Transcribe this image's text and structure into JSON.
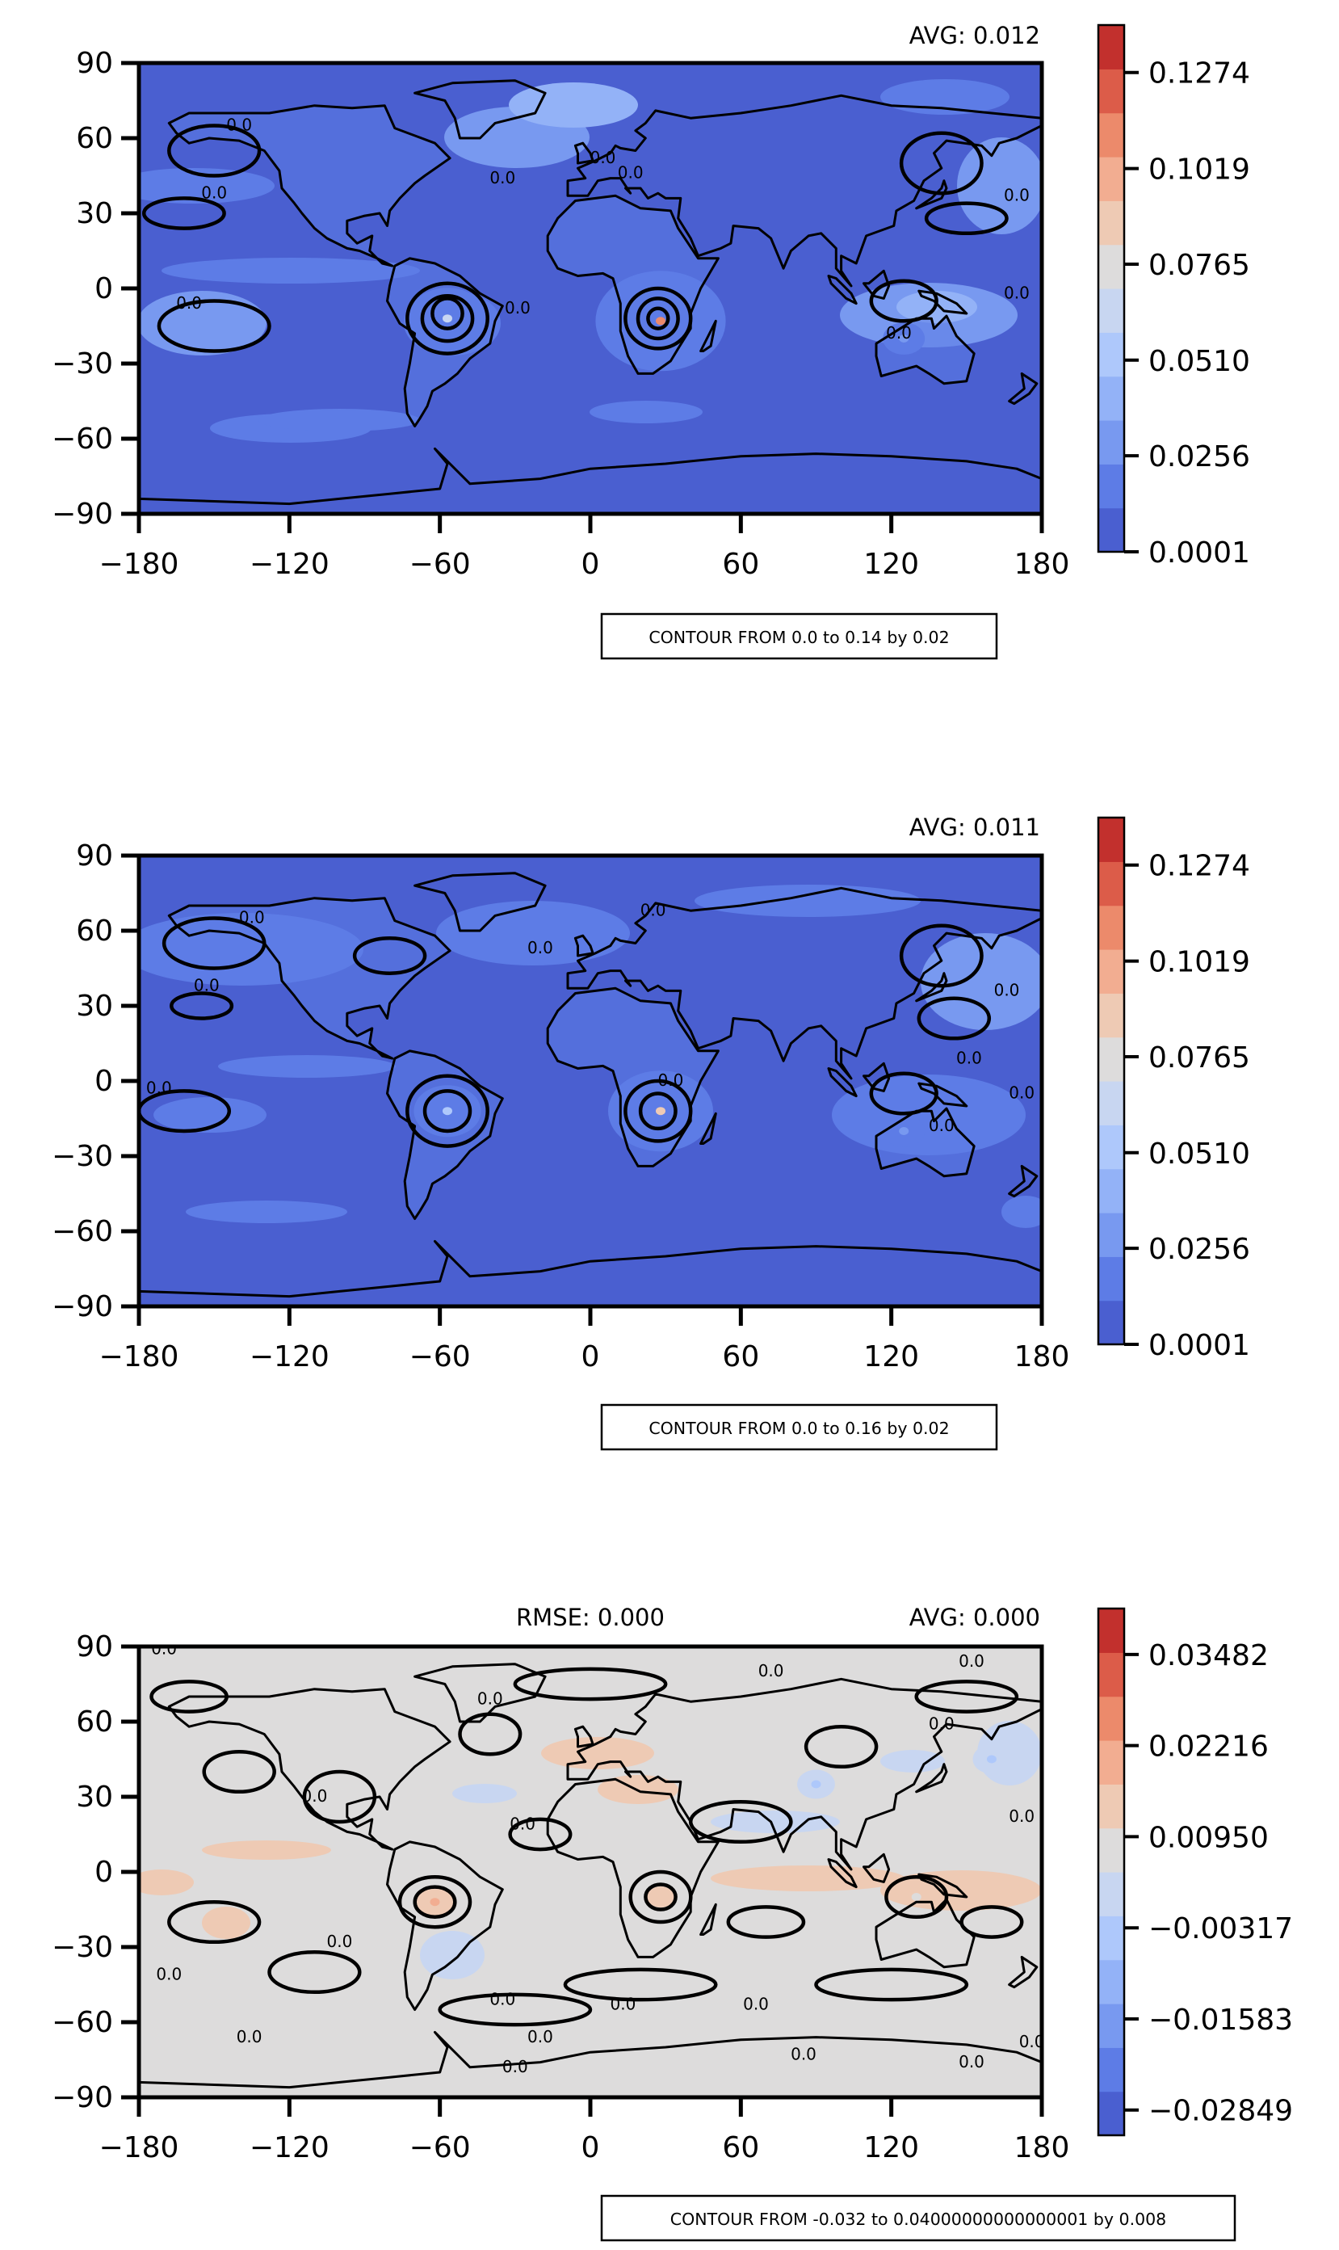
{
  "chart_data": [
    {
      "type": "heatmap",
      "subtype": "filled-contour-map",
      "xlim": [
        -180,
        180
      ],
      "ylim": [
        -90,
        90
      ],
      "xticks": [
        -180,
        -120,
        -60,
        0,
        60,
        120,
        180
      ],
      "yticks": [
        90,
        60,
        30,
        0,
        -30,
        -60,
        -90
      ],
      "xtick_labels": [
        "−180",
        "−120",
        "−60",
        "0",
        "60",
        "120",
        "180"
      ],
      "ytick_labels": [
        "90",
        "60",
        "30",
        "0",
        "−30",
        "−60",
        "−90"
      ],
      "avg_label": "AVG: 0.012",
      "colorbar": {
        "range": [
          0.0001,
          0.14
        ],
        "tick_values": [
          0.0001,
          0.0256,
          0.051,
          0.0765,
          0.1019,
          0.1274
        ],
        "tick_labels": [
          "0.0001",
          "0.0256",
          "0.0510",
          "0.0765",
          "0.1019",
          "0.1274"
        ],
        "colors": [
          "#4a5fd0",
          "#5d7ce6",
          "#7899f0",
          "#93b2f7",
          "#aec8fb",
          "#c8d6f1",
          "#dddcdc",
          "#eecab4",
          "#f2ad91",
          "#ec8a6b",
          "#dc5c49",
          "#c2302d"
        ]
      },
      "contour_note": "CONTOUR FROM 0.0 to 0.14 by 0.02",
      "contour_label": "0.0",
      "hotspots": [
        {
          "lon": 28,
          "lat": -13,
          "value": 0.11
        },
        {
          "lon": -57,
          "lat": -12,
          "value": 0.065
        },
        {
          "lon": 125,
          "lat": -20,
          "value": 0.03
        }
      ]
    },
    {
      "type": "heatmap",
      "subtype": "filled-contour-map",
      "xlim": [
        -180,
        180
      ],
      "ylim": [
        -90,
        90
      ],
      "xticks": [
        -180,
        -120,
        -60,
        0,
        60,
        120,
        180
      ],
      "yticks": [
        90,
        60,
        30,
        0,
        -30,
        -60,
        -90
      ],
      "xtick_labels": [
        "−180",
        "−120",
        "−60",
        "0",
        "60",
        "120",
        "180"
      ],
      "ytick_labels": [
        "90",
        "60",
        "30",
        "0",
        "−30",
        "−60",
        "−90"
      ],
      "avg_label": "AVG: 0.011",
      "colorbar": {
        "range": [
          0.0001,
          0.14
        ],
        "tick_values": [
          0.0001,
          0.0256,
          0.051,
          0.0765,
          0.1019,
          0.1274
        ],
        "tick_labels": [
          "0.0001",
          "0.0256",
          "0.0510",
          "0.0765",
          "0.1019",
          "0.1274"
        ],
        "colors": [
          "#4a5fd0",
          "#5d7ce6",
          "#7899f0",
          "#93b2f7",
          "#aec8fb",
          "#c8d6f1",
          "#dddcdc",
          "#eecab4",
          "#f2ad91",
          "#ec8a6b",
          "#dc5c49",
          "#c2302d"
        ]
      },
      "contour_note": "CONTOUR FROM 0.0 to 0.16 by 0.02",
      "contour_label": "0.0",
      "hotspots": [
        {
          "lon": 28,
          "lat": -12,
          "value": 0.085
        },
        {
          "lon": -57,
          "lat": -12,
          "value": 0.055
        },
        {
          "lon": 125,
          "lat": -20,
          "value": 0.03
        }
      ]
    },
    {
      "type": "heatmap",
      "subtype": "filled-contour-map",
      "xlim": [
        -180,
        180
      ],
      "ylim": [
        -90,
        90
      ],
      "xticks": [
        -180,
        -120,
        -60,
        0,
        60,
        120,
        180
      ],
      "yticks": [
        90,
        60,
        30,
        0,
        -30,
        -60,
        -90
      ],
      "xtick_labels": [
        "−180",
        "−120",
        "−60",
        "0",
        "60",
        "120",
        "180"
      ],
      "ytick_labels": [
        "90",
        "60",
        "30",
        "0",
        "−30",
        "−60",
        "−90"
      ],
      "avg_label": "AVG: 0.000",
      "rmse_label": "RMSE: 0.000",
      "colorbar": {
        "range": [
          -0.032,
          0.0412
        ],
        "tick_values": [
          -0.02849,
          -0.01583,
          -0.00317,
          0.0095,
          0.02216,
          0.03482
        ],
        "tick_labels": [
          "−0.02849",
          "−0.01583",
          "−0.00317",
          "0.00950",
          "0.02216",
          "0.03482"
        ],
        "colors": [
          "#4a5fd0",
          "#5d7ce6",
          "#7899f0",
          "#93b2f7",
          "#aec8fb",
          "#c8d6f1",
          "#dddcdc",
          "#eecab4",
          "#f2ad91",
          "#ec8a6b",
          "#dc5c49",
          "#c2302d"
        ]
      },
      "contour_note": "CONTOUR FROM -0.032 to 0.04000000000000001 by 0.008",
      "contour_label": "0.0",
      "hotspots": [
        {
          "lon": -62,
          "lat": -12,
          "value": 0.02
        },
        {
          "lon": 28,
          "lat": -10,
          "value": 0.016
        },
        {
          "lon": 40,
          "lat": 48,
          "value": 0.008
        },
        {
          "lon": 130,
          "lat": -10,
          "value": 0.008
        },
        {
          "lon": 90,
          "lat": 35,
          "value": -0.006
        },
        {
          "lon": 160,
          "lat": 45,
          "value": -0.006
        }
      ]
    }
  ]
}
